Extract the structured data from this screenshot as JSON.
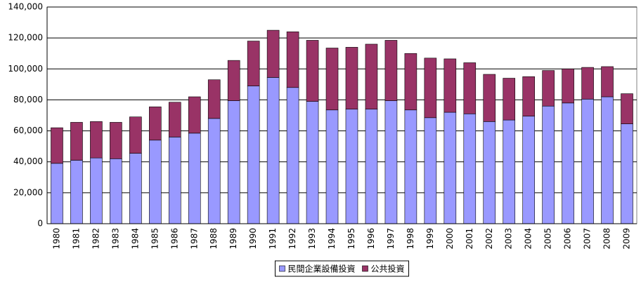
{
  "chart_data": {
    "type": "stacked_bar",
    "categories": [
      "1980",
      "1981",
      "1982",
      "1983",
      "1984",
      "1985",
      "1986",
      "1987",
      "1988",
      "1989",
      "1990",
      "1991",
      "1992",
      "1993",
      "1994",
      "1995",
      "1996",
      "1997",
      "1998",
      "1999",
      "2000",
      "2001",
      "2002",
      "2003",
      "2004",
      "2005",
      "2006",
      "2007",
      "2008",
      "2009"
    ],
    "series": [
      {
        "name": "民間企業設備投資",
        "color": "#9999ff",
        "values": [
          39000,
          41000,
          42500,
          42000,
          45500,
          54000,
          56000,
          58500,
          68000,
          79500,
          89000,
          94500,
          88000,
          79000,
          73500,
          74000,
          74000,
          79500,
          73500,
          68500,
          72000,
          71000,
          66000,
          67000,
          69500,
          76000,
          78000,
          80500,
          82000,
          64500
        ]
      },
      {
        "name": "公共投資",
        "color": "#993366",
        "values": [
          23000,
          24500,
          23500,
          23500,
          23500,
          21500,
          22500,
          23500,
          25000,
          26000,
          29000,
          30500,
          36000,
          39500,
          40000,
          40000,
          42000,
          39000,
          36500,
          38500,
          34500,
          33000,
          30500,
          27000,
          25500,
          23000,
          22000,
          20500,
          19500,
          19500
        ]
      }
    ],
    "ylim": [
      0,
      140000
    ],
    "yticks": [
      0,
      {
        "value": 20000,
        "label": "20,000"
      },
      {
        "value": 40000,
        "label": "40,000"
      },
      {
        "value": 60000,
        "label": "60,000"
      },
      {
        "value": 80000,
        "label": "80,000"
      },
      {
        "value": 100000,
        "label": "100,000"
      },
      {
        "value": 120000,
        "label": "120,000"
      },
      {
        "value": 140000,
        "label": "140,000"
      }
    ],
    "grid": true,
    "legend": "bottom"
  }
}
